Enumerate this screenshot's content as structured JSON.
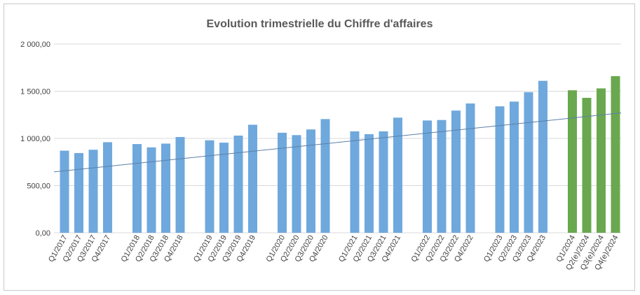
{
  "chart_data": {
    "type": "bar",
    "title": "Evolution trimestrielle du Chiffre d'affaires",
    "xlabel": "",
    "ylabel": "",
    "ylim": [
      0,
      2000
    ],
    "yticks": [
      {
        "value": 0,
        "label": "0,00"
      },
      {
        "value": 500,
        "label": "500,00"
      },
      {
        "value": 1000,
        "label": "1 000,00"
      },
      {
        "value": 1500,
        "label": "1 500,00"
      },
      {
        "value": 2000,
        "label": "2 000,00"
      }
    ],
    "grid": true,
    "legend": "none",
    "colors": {
      "actual": "#6fa8dc",
      "forecast": "#6aa84f",
      "trend": "#5b7fa8",
      "grid": "#d9d9d9"
    },
    "groups": [
      {
        "categories": [
          "Q1/2017",
          "Q2/2017",
          "Q3/2017",
          "Q4/2017"
        ],
        "values": [
          870,
          845,
          880,
          960
        ],
        "kind": "actual"
      },
      {
        "categories": [
          "Q1/2018",
          "Q2/2018",
          "Q3/2018",
          "Q4/2018"
        ],
        "values": [
          940,
          905,
          945,
          1015
        ],
        "kind": "actual"
      },
      {
        "categories": [
          "Q1/2019",
          "Q2/2019",
          "Q3/2019",
          "Q4/2019"
        ],
        "values": [
          980,
          955,
          1030,
          1145
        ],
        "kind": "actual"
      },
      {
        "categories": [
          "Q1/2020",
          "Q2/2020",
          "Q3/2020",
          "Q4/2020"
        ],
        "values": [
          1060,
          1035,
          1095,
          1205
        ],
        "kind": "actual"
      },
      {
        "categories": [
          "Q1/2021",
          "Q2/2021",
          "Q3/2021",
          "Q4/2021"
        ],
        "values": [
          1075,
          1045,
          1075,
          1220
        ],
        "kind": "actual"
      },
      {
        "categories": [
          "Q1/2022",
          "Q2/2022",
          "Q3/2022",
          "Q4/2022"
        ],
        "values": [
          1190,
          1195,
          1295,
          1370
        ],
        "kind": "actual"
      },
      {
        "categories": [
          "Q1/2023",
          "Q2/2023",
          "Q3/2023",
          "Q4/2023"
        ],
        "values": [
          1340,
          1390,
          1490,
          1610
        ],
        "kind": "actual"
      },
      {
        "categories": [
          "Q1/2024",
          "Q2(e)/2024",
          "Q3(e)/2024",
          "Q4(e)/2024"
        ],
        "values": [
          1510,
          1430,
          1530,
          1660
        ],
        "kind": "forecast"
      }
    ],
    "trendline": {
      "type": "linear",
      "start_value": 645,
      "end_value": 1270
    }
  }
}
